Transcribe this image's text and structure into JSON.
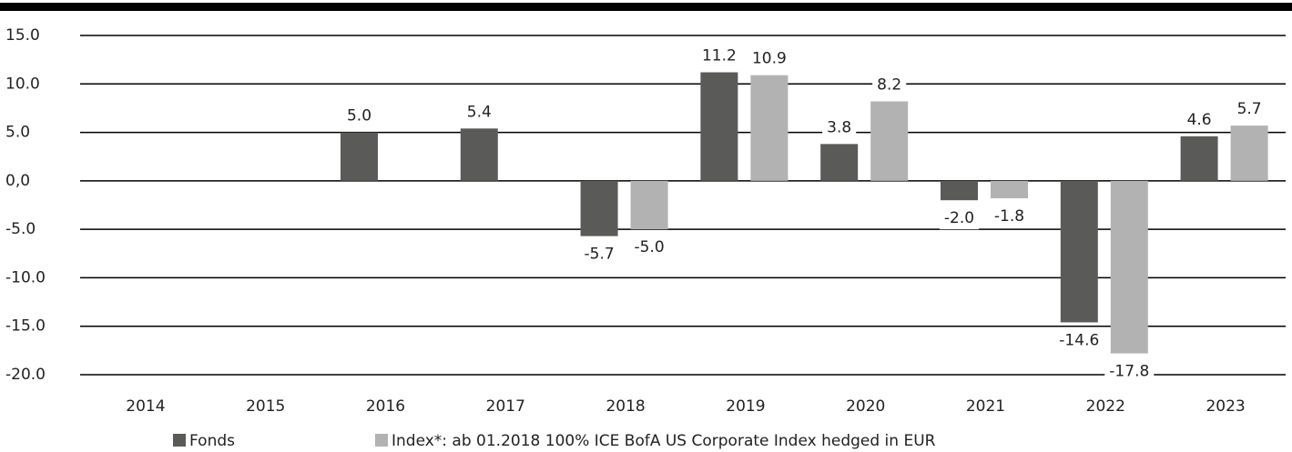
{
  "chart_data": {
    "type": "bar",
    "categories": [
      "2014",
      "2015",
      "2016",
      "2017",
      "2018",
      "2019",
      "2020",
      "2021",
      "2022",
      "2023"
    ],
    "series": [
      {
        "name": "Fonds",
        "color": "#5a5a59",
        "values": [
          null,
          null,
          5.0,
          5.4,
          -5.7,
          11.2,
          3.8,
          -2.0,
          -14.6,
          4.6
        ],
        "value_labels": [
          null,
          null,
          "5.0",
          "5.4",
          "-5.7",
          "11.2",
          "3.8",
          "-2.0",
          "-14.6",
          "4.6"
        ]
      },
      {
        "name": "Index*: ab 01.2018 100% ICE BofA US Corporate Index hedged in EUR",
        "color": "#b2b2b2",
        "values": [
          null,
          null,
          null,
          null,
          -5.0,
          10.9,
          8.2,
          -1.8,
          -17.8,
          5.7
        ],
        "value_labels": [
          null,
          null,
          null,
          null,
          "-5.0",
          "10.9",
          "8.2",
          "-1.8",
          "-17.8",
          "5.7"
        ]
      }
    ],
    "ylim": [
      -20,
      15
    ],
    "yticks": [
      {
        "value": 15,
        "label": "15.0"
      },
      {
        "value": 10,
        "label": "10.0"
      },
      {
        "value": 5,
        "label": "5.0"
      },
      {
        "value": 0,
        "label": "0,0"
      },
      {
        "value": -5,
        "label": "-5.0"
      },
      {
        "value": -10,
        "label": "-10.0"
      },
      {
        "value": -15,
        "label": "-15.0"
      },
      {
        "value": -20,
        "label": "-20.0"
      }
    ],
    "grid": true
  }
}
